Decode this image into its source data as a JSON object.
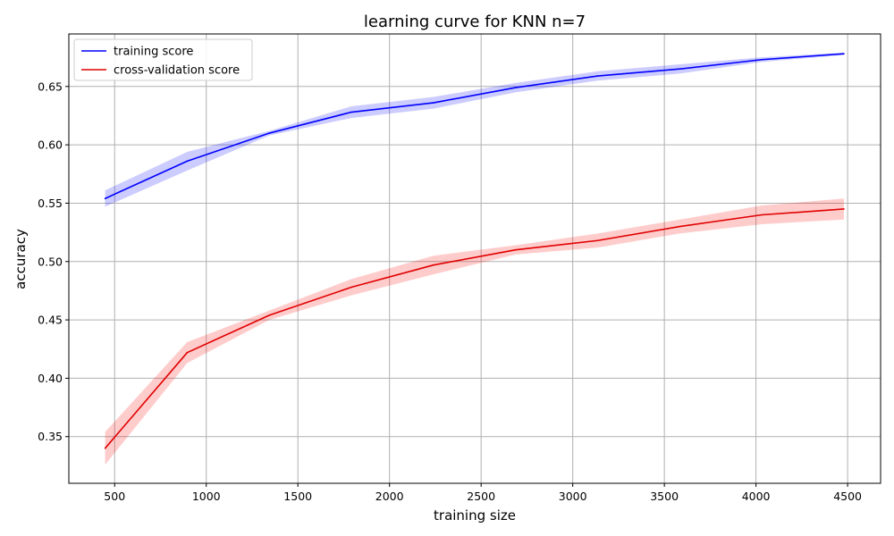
{
  "chart_data": {
    "type": "line",
    "title": "learning curve for KNN n=7",
    "xlabel": "training size",
    "ylabel": "accuracy",
    "xlim": [
      250,
      4680
    ],
    "ylim": [
      0.31,
      0.695
    ],
    "x_ticks": [
      500,
      1000,
      1500,
      2000,
      2500,
      3000,
      3500,
      4000,
      4500
    ],
    "y_ticks": [
      0.35,
      0.4,
      0.45,
      0.5,
      0.55,
      0.6,
      0.65
    ],
    "grid": true,
    "legend_position": "top-left",
    "x": [
      448,
      896,
      1344,
      1792,
      2240,
      2688,
      3136,
      3584,
      4032,
      4480
    ],
    "series": [
      {
        "name": "training score",
        "color": "#0000ff",
        "band_color": "#0000ff",
        "values": [
          0.554,
          0.586,
          0.61,
          0.628,
          0.636,
          0.649,
          0.659,
          0.665,
          0.673,
          0.678
        ],
        "std": [
          0.007,
          0.008,
          0.002,
          0.005,
          0.005,
          0.004,
          0.004,
          0.004,
          0.002,
          0.001
        ]
      },
      {
        "name": "cross-validation score",
        "color": "#e00000",
        "band_color": "#ff0000",
        "values": [
          0.34,
          0.422,
          0.454,
          0.478,
          0.497,
          0.51,
          0.518,
          0.53,
          0.54,
          0.545
        ],
        "std": [
          0.014,
          0.009,
          0.004,
          0.007,
          0.008,
          0.004,
          0.006,
          0.006,
          0.008,
          0.009
        ]
      }
    ]
  }
}
